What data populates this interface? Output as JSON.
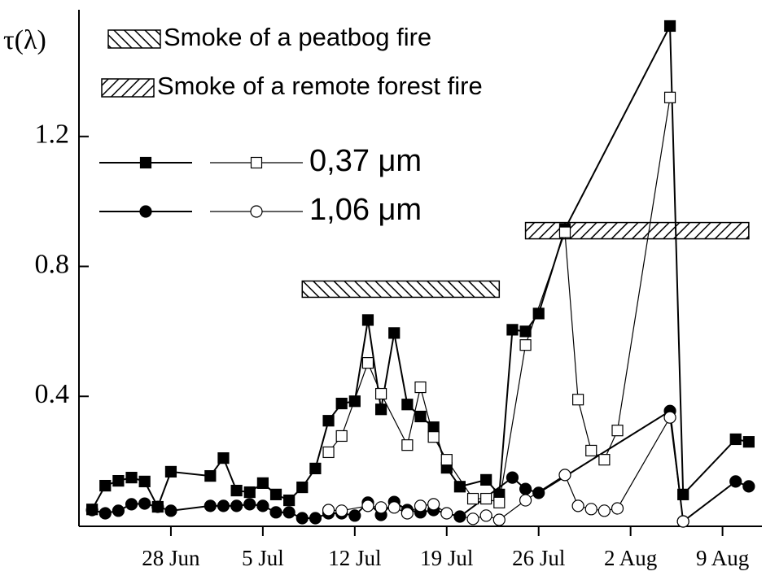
{
  "chart_data": {
    "type": "line",
    "ylabel": "τ(λ)",
    "ylim": [
      0,
      1.59
    ],
    "yticks": [
      0.4,
      0.8,
      1.2
    ],
    "xlim": [
      "21 Jun",
      "12 Aug"
    ],
    "xticks": [
      "28 Jun",
      "5 Jul",
      "12 Jul",
      "19 Jul",
      "26 Jul",
      "2 Aug",
      "9 Aug"
    ],
    "series": [
      {
        "name": "0,37 μm",
        "color": "#000000",
        "marker": "square",
        "filled": true,
        "x": [
          "22 Jun",
          "23 Jun",
          "24 Jun",
          "25 Jun",
          "26 Jun",
          "27 Jun",
          "28 Jun",
          "1 Jul",
          "2 Jul",
          "3 Jul",
          "4 Jul",
          "5 Jul",
          "6 Jul",
          "7 Jul",
          "8 Jul",
          "9 Jul",
          "10 Jul",
          "11 Jul",
          "12 Jul",
          "13 Jul",
          "14 Jul",
          "15 Jul",
          "16 Jul",
          "17 Jul",
          "18 Jul",
          "19 Jul",
          "20 Jul",
          "22 Jul",
          "23 Jul",
          "24 Jul",
          "25 Jul",
          "26 Jul",
          "28 Jul",
          "5 Aug",
          "6 Aug",
          "10 Aug",
          "11 Aug"
        ],
        "values": [
          0.052,
          0.125,
          0.14,
          0.15,
          0.138,
          0.06,
          0.168,
          0.155,
          0.21,
          0.11,
          0.105,
          0.133,
          0.098,
          0.08,
          0.12,
          0.178,
          0.325,
          0.378,
          0.385,
          0.635,
          0.36,
          0.595,
          0.375,
          0.338,
          0.305,
          0.18,
          0.122,
          0.143,
          0.098,
          0.605,
          0.6,
          0.655,
          0.915,
          1.54,
          0.098,
          0.268,
          0.26
        ]
      },
      {
        "name": "0,37 μm",
        "color": "#000000",
        "marker": "square",
        "filled": false,
        "x": [
          "10 Jul",
          "11 Jul",
          "13 Jul",
          "14 Jul",
          "16 Jul",
          "17 Jul",
          "18 Jul",
          "19 Jul",
          "21 Jul",
          "22 Jul",
          "23 Jul",
          "25 Jul",
          "28 Jul",
          "29 Jul",
          "30 Jul",
          "31 Jul",
          "1 Aug",
          "5 Aug"
        ],
        "values": [
          0.228,
          0.278,
          0.503,
          0.408,
          0.25,
          0.428,
          0.275,
          0.205,
          0.085,
          0.085,
          0.073,
          0.558,
          0.905,
          0.39,
          0.233,
          0.205,
          0.295,
          1.32
        ]
      },
      {
        "name": "1,06 μm",
        "color": "#000000",
        "marker": "circle",
        "filled": true,
        "x": [
          "22 Jun",
          "23 Jun",
          "24 Jun",
          "25 Jun",
          "26 Jun",
          "27 Jun",
          "28 Jun",
          "1 Jul",
          "2 Jul",
          "3 Jul",
          "4 Jul",
          "5 Jul",
          "6 Jul",
          "7 Jul",
          "8 Jul",
          "9 Jul",
          "10 Jul",
          "11 Jul",
          "12 Jul",
          "13 Jul",
          "14 Jul",
          "15 Jul",
          "16 Jul",
          "17 Jul",
          "18 Jul",
          "20 Jul",
          "24 Jul",
          "25 Jul",
          "26 Jul",
          "5 Aug",
          "6 Aug",
          "10 Aug",
          "11 Aug"
        ],
        "values": [
          0.05,
          0.04,
          0.048,
          0.068,
          0.07,
          0.06,
          0.048,
          0.063,
          0.063,
          0.063,
          0.068,
          0.063,
          0.043,
          0.043,
          0.025,
          0.025,
          0.04,
          0.04,
          0.033,
          0.073,
          0.035,
          0.075,
          0.05,
          0.043,
          0.05,
          0.03,
          0.15,
          0.115,
          0.103,
          0.355,
          0.015,
          0.138,
          0.123
        ]
      },
      {
        "name": "1,06 μm",
        "color": "#000000",
        "marker": "circle",
        "filled": false,
        "x": [
          "10 Jul",
          "11 Jul",
          "13 Jul",
          "14 Jul",
          "15 Jul",
          "16 Jul",
          "17 Jul",
          "18 Jul",
          "19 Jul",
          "21 Jul",
          "22 Jul",
          "23 Jul",
          "25 Jul",
          "28 Jul",
          "29 Jul",
          "30 Jul",
          "31 Jul",
          "1 Aug",
          "5 Aug",
          "6 Aug"
        ],
        "values": [
          0.05,
          0.048,
          0.063,
          0.058,
          0.058,
          0.04,
          0.063,
          0.068,
          0.04,
          0.023,
          0.033,
          0.02,
          0.08,
          0.158,
          0.063,
          0.053,
          0.048,
          0.055,
          0.335,
          0.015
        ]
      }
    ],
    "annotations": [
      {
        "label": "Smoke of a peatbog fire",
        "pattern": "backslash",
        "x": [
          "8 Jul",
          "23 Jul"
        ],
        "y": 0.73
      },
      {
        "label": "Smoke of a remote forest fire",
        "pattern": "slash",
        "x": [
          "25 Jul",
          "11 Aug"
        ],
        "y": 0.91
      }
    ]
  }
}
